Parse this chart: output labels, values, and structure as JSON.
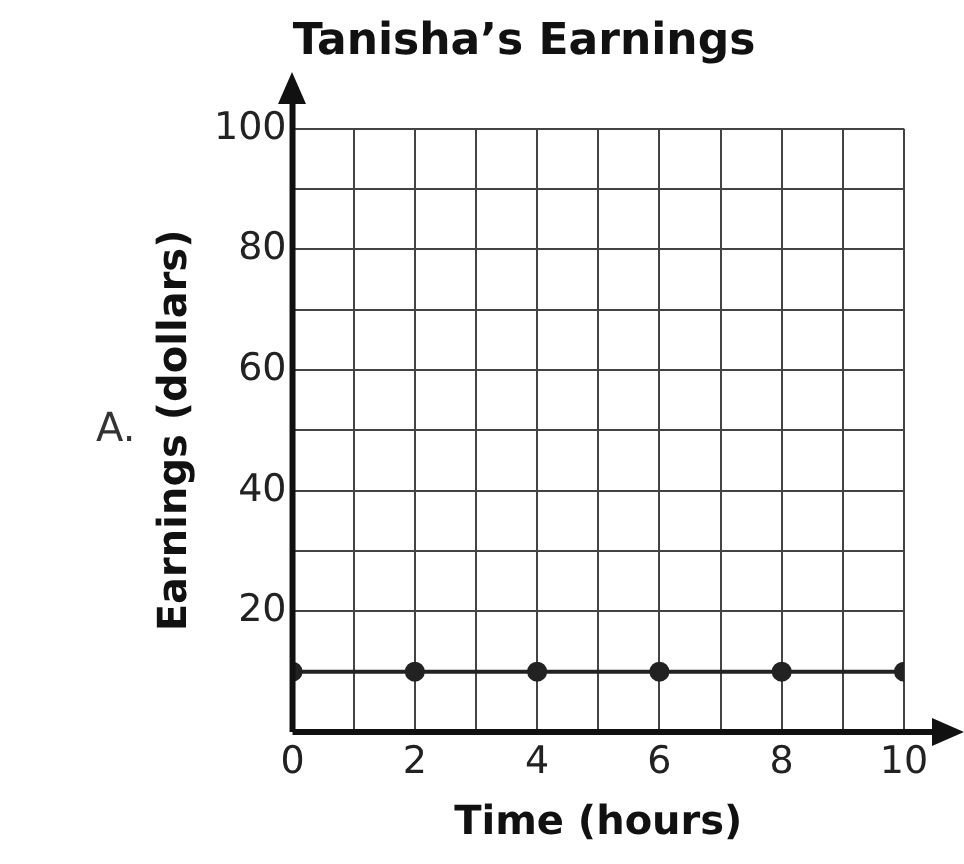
{
  "chart_data": {
    "type": "line",
    "title": "Tanisha’s Earnings",
    "xlabel": "Time (hours)",
    "ylabel": "Earnings (dollars)",
    "annotations": [
      "A."
    ],
    "x": [
      0,
      2,
      4,
      6,
      8,
      10
    ],
    "series": [
      {
        "color": "#222222",
        "values": [
          10,
          10,
          10,
          10,
          10,
          10
        ]
      }
    ],
    "xlim": [
      0,
      10
    ],
    "xticks": [
      0,
      {
        "value": 1,
        "label": null
      },
      2,
      {
        "value": 3,
        "label": null
      },
      4,
      {
        "value": 5,
        "label": null
      },
      6,
      {
        "value": 7,
        "label": null
      },
      8,
      {
        "value": 9,
        "label": null
      },
      10
    ],
    "ylim": [
      0,
      100
    ],
    "yticks": [
      {
        "value": 0,
        "label": null
      },
      20,
      {
        "value": 30,
        "label": null
      },
      40,
      {
        "value": 50,
        "label": null
      },
      60,
      {
        "value": 70,
        "label": null
      },
      80,
      {
        "value": 90,
        "label": null
      },
      100
    ],
    "grid": true,
    "legend": false,
    "marker": "circle",
    "line_style": "solid"
  }
}
